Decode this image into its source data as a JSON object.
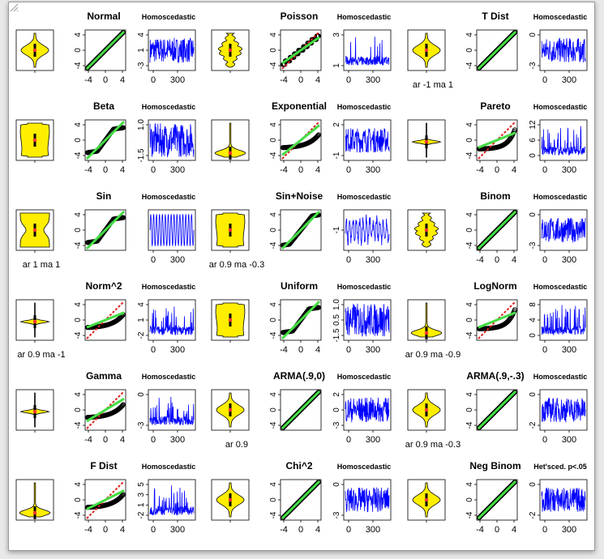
{
  "chart_data": {
    "type": "diagnostic-grid",
    "columns_per_panel": [
      "violin",
      "qq-normal",
      "series-trace"
    ],
    "qq_reference_line_color": "#44dd44",
    "qq_fitted_line_color": "#dd2222",
    "violin_fill": "#ffee00",
    "trace_color": "#0000ff",
    "panels": [
      {
        "name": "Normal",
        "trace_title": "Homoscedastic",
        "violin_caption": "",
        "qq_slope": 1.0,
        "qq_shape": "linear",
        "violin_shape": "normal",
        "trace_yticks": [
          "-3",
          "1",
          "4"
        ],
        "trace_style": "noise"
      },
      {
        "name": "Poisson",
        "trace_title": "Homoscedastic",
        "violin_caption": "",
        "qq_slope": 0.7,
        "qq_shape": "steps",
        "violin_shape": "lumpy",
        "trace_yticks": [
          "1",
          "3"
        ],
        "trace_style": "spiky"
      },
      {
        "name": "T Dist",
        "trace_title": "Homoscedastic",
        "violin_caption": "ar -1 ma 1",
        "qq_slope": 1.0,
        "qq_shape": "linear",
        "violin_shape": "normal",
        "trace_yticks": [
          "-3",
          "0"
        ],
        "trace_style": "noise"
      },
      {
        "name": "Beta",
        "trace_title": "Homoscedastic",
        "violin_caption": "",
        "qq_slope": 1.0,
        "qq_shape": "flat",
        "violin_shape": "wide",
        "trace_yticks": [
          "-1.5",
          "1.0"
        ],
        "trace_style": "dense"
      },
      {
        "name": "Exponential",
        "trace_title": "Homoscedastic",
        "violin_caption": "",
        "qq_slope": 0.8,
        "qq_shape": "convex",
        "violin_shape": "skew",
        "trace_yticks": [
          "-1",
          "2"
        ],
        "trace_style": "noise"
      },
      {
        "name": "Pareto",
        "trace_title": "Homoscedastic",
        "violin_caption": "",
        "qq_slope": 0.4,
        "qq_shape": "convex-steep",
        "violin_shape": "spike",
        "trace_yticks": [
          "0",
          "6",
          "12"
        ],
        "trace_style": "spiky"
      },
      {
        "name": "Sin",
        "trace_title": "Homoscedastic",
        "violin_caption": "ar 1 ma 1",
        "qq_slope": 1.0,
        "qq_shape": "flat",
        "violin_shape": "bimodal",
        "trace_yticks": [],
        "trace_style": "sine"
      },
      {
        "name": "Sin+Noise",
        "trace_title": "Homoscedastic",
        "violin_caption": "ar 0.9 ma -0.3",
        "qq_slope": 1.0,
        "qq_shape": "flat-mild",
        "violin_shape": "wide",
        "trace_yticks": [
          "-1"
        ],
        "trace_style": "sine-noise"
      },
      {
        "name": "Binom",
        "trace_title": "Homoscedastic",
        "violin_caption": "",
        "qq_slope": 1.0,
        "qq_shape": "linear",
        "violin_shape": "lumpy",
        "trace_yticks": [
          "-3",
          "0"
        ],
        "trace_style": "noise"
      },
      {
        "name": "Norm^2",
        "trace_title": "Homoscedastic",
        "violin_caption": "ar 0.9 ma -1",
        "qq_slope": 0.4,
        "qq_shape": "convex",
        "violin_shape": "spike",
        "trace_yticks": [
          "-2",
          "1",
          "4"
        ],
        "trace_style": "spiky"
      },
      {
        "name": "Uniform",
        "trace_title": "Homoscedastic",
        "violin_caption": "",
        "qq_slope": 1.0,
        "qq_shape": "flat",
        "violin_shape": "wide",
        "trace_yticks": [
          "-1.5",
          "0.5",
          "1.0"
        ],
        "trace_style": "dense"
      },
      {
        "name": "LogNorm",
        "trace_title": "Homoscedastic",
        "violin_caption": "ar 0.9 ma -0.9",
        "qq_slope": 0.4,
        "qq_shape": "convex-steep",
        "violin_shape": "skew",
        "trace_yticks": [
          "0",
          "4",
          "8"
        ],
        "trace_style": "spiky"
      },
      {
        "name": "Gamma",
        "trace_title": "Homoscedastic",
        "violin_caption": "",
        "qq_slope": 0.6,
        "qq_shape": "convex",
        "violin_shape": "spike",
        "trace_yticks": [
          "-3",
          "0"
        ],
        "trace_style": "spiky"
      },
      {
        "name": "ARMA(.9,0)",
        "trace_title": "Homoscedastic",
        "violin_caption": "ar 0.9",
        "qq_slope": 1.0,
        "qq_shape": "linear",
        "violin_shape": "normal",
        "trace_yticks": [
          "-3",
          "0",
          "2"
        ],
        "trace_style": "noise"
      },
      {
        "name": "ARMA(.9,-.3)",
        "trace_title": "Homoscedastic",
        "violin_caption": "ar 0.9 ma -0.3",
        "qq_slope": 1.0,
        "qq_shape": "linear",
        "violin_shape": "normal",
        "trace_yticks": [
          "-2",
          "0"
        ],
        "trace_style": "noise"
      },
      {
        "name": "F Dist",
        "trace_title": "Homoscedastic",
        "violin_caption": "",
        "qq_slope": 0.5,
        "qq_shape": "convex",
        "violin_shape": "skew",
        "trace_yticks": [
          "-2",
          "1",
          "3",
          "5"
        ],
        "trace_style": "spiky"
      },
      {
        "name": "Chi^2",
        "trace_title": "Homoscedastic",
        "violin_caption": "",
        "qq_slope": 1.0,
        "qq_shape": "linear",
        "violin_shape": "normal",
        "trace_yticks": [
          "-3",
          "0"
        ],
        "trace_style": "noise"
      },
      {
        "name": "Neg Binom",
        "trace_title": "Het'sced. p<.05",
        "violin_caption": "",
        "qq_slope": 1.0,
        "qq_shape": "linear",
        "violin_shape": "normal",
        "trace_yticks": [
          "-2",
          "0"
        ],
        "trace_style": "noise"
      }
    ],
    "qq_yticks": [
      "4",
      "0",
      "-4"
    ],
    "qq_xticks": [
      "-4",
      "0",
      "4"
    ],
    "trace_xticks": [
      "0",
      "300"
    ]
  }
}
